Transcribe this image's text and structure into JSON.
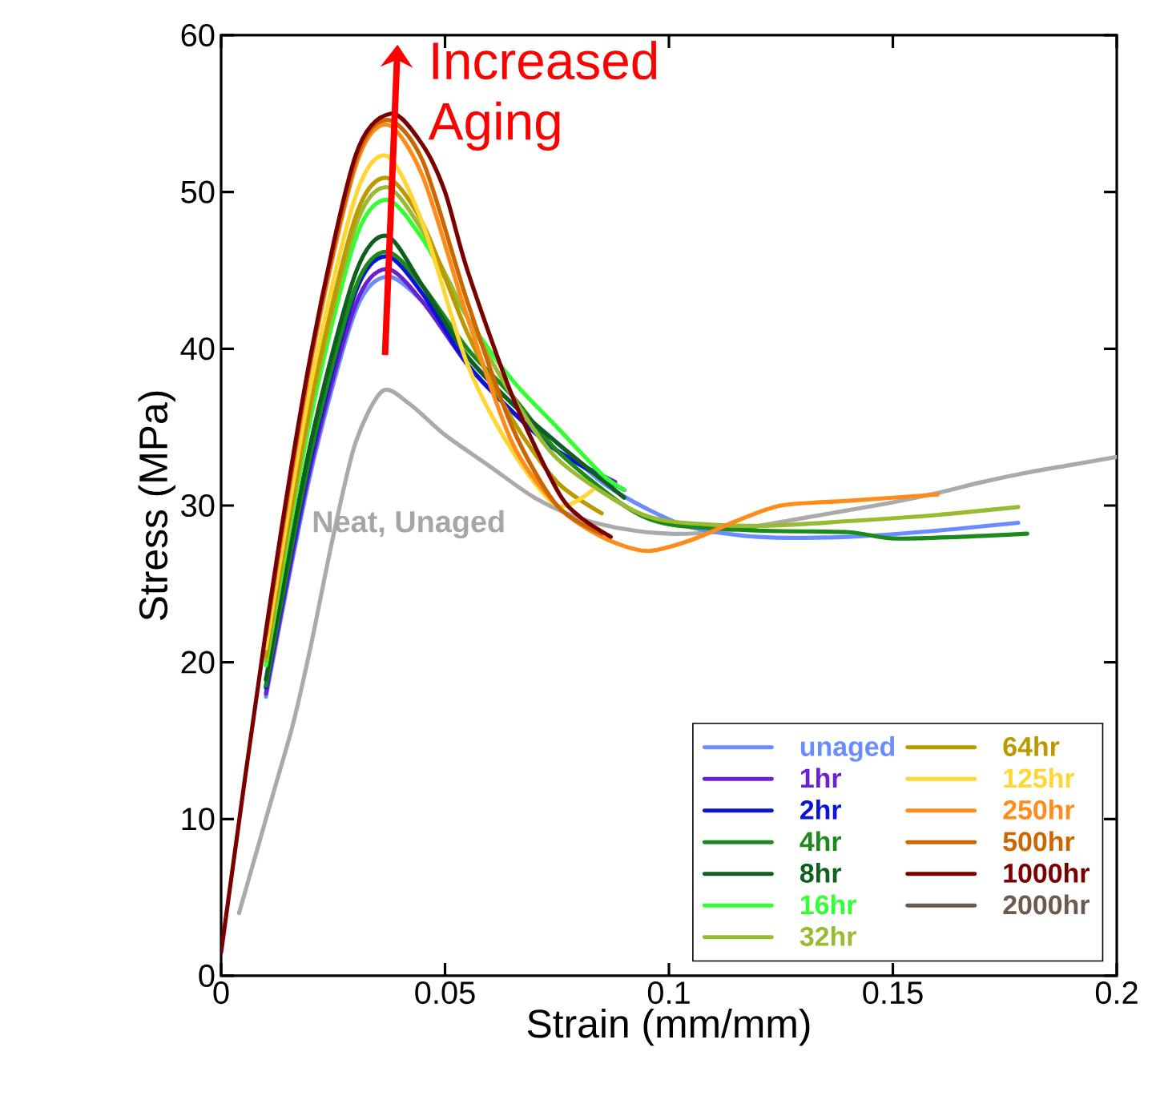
{
  "chart_data": {
    "type": "line",
    "xlabel": "Strain (mm/mm)",
    "ylabel": "Stress (MPa)",
    "xlim": [
      0,
      0.2
    ],
    "ylim": [
      0,
      60
    ],
    "xticks": [
      0,
      0.05,
      0.1,
      0.15,
      0.2
    ],
    "yticks": [
      0,
      10,
      20,
      30,
      40,
      50,
      60
    ],
    "legend": "bottom right",
    "annotations": [
      "Increased Aging",
      "Neat, Unaged"
    ],
    "series": [
      {
        "color": "#aaaaaa",
        "x": [
          0.004,
          0.008,
          0.012,
          0.016,
          0.02,
          0.025,
          0.03,
          0.036,
          0.042,
          0.05,
          0.06,
          0.07,
          0.08,
          0.09,
          0.1,
          0.11,
          0.12,
          0.13,
          0.14,
          0.15,
          0.16,
          0.17,
          0.18,
          0.19,
          0.2
        ],
        "values": [
          4,
          8,
          12,
          16,
          21,
          28,
          34,
          37.3,
          36.5,
          34.5,
          32.5,
          30.5,
          29.2,
          28.5,
          28.2,
          28.3,
          28.7,
          29.2,
          29.7,
          30.2,
          30.8,
          31.5,
          32.1,
          32.6,
          33.1
        ]
      },
      {
        "name": "unaged",
        "color": "#6b8cff",
        "x": [
          0.01,
          0.02,
          0.03,
          0.037,
          0.045,
          0.055,
          0.065,
          0.075,
          0.085,
          0.095,
          0.105,
          0.12,
          0.14,
          0.16,
          0.178
        ],
        "values": [
          17.8,
          32.1,
          42.4,
          44.6,
          43,
          39.5,
          36.5,
          34,
          31.5,
          29.8,
          28.6,
          28,
          28,
          28.4,
          28.9
        ]
      },
      {
        "name": "1hr",
        "color": "#6a1fd0",
        "x": [
          0.01,
          0.02,
          0.03,
          0.037,
          0.045,
          0.055,
          0.065,
          0.075,
          0.088
        ],
        "values": [
          18,
          32.5,
          42.8,
          45.1,
          43,
          39,
          36,
          33.5,
          31.5
        ]
      },
      {
        "name": "2hr",
        "color": "#0a14d6",
        "x": [
          0.01,
          0.02,
          0.03,
          0.037,
          0.045,
          0.055,
          0.065,
          0.075,
          0.09
        ],
        "values": [
          18.4,
          33,
          43.6,
          45.9,
          43.5,
          39,
          36,
          33.5,
          31
        ]
      },
      {
        "name": "4hr",
        "color": "#1a8a1a",
        "x": [
          0.01,
          0.02,
          0.03,
          0.037,
          0.045,
          0.055,
          0.065,
          0.075,
          0.09,
          0.1,
          0.12,
          0.14,
          0.15,
          0.165,
          0.18
        ],
        "values": [
          18.5,
          33.3,
          43.9,
          46.2,
          44,
          40,
          37,
          33.5,
          30,
          28.8,
          28.4,
          28.3,
          27.9,
          28,
          28.2
        ]
      },
      {
        "name": "8hr",
        "color": "#0f5f1f",
        "x": [
          0.01,
          0.02,
          0.03,
          0.037,
          0.045,
          0.055,
          0.065,
          0.075,
          0.09
        ],
        "values": [
          18.9,
          34,
          44.8,
          47.2,
          44,
          39.5,
          36.5,
          34,
          30.5
        ]
      },
      {
        "name": "16hr",
        "color": "#33ff33",
        "x": [
          0.01,
          0.02,
          0.03,
          0.037,
          0.045,
          0.055,
          0.065,
          0.075,
          0.085,
          0.09
        ],
        "values": [
          19.8,
          35.6,
          47,
          49.5,
          47,
          42,
          38,
          35,
          32,
          31
        ]
      },
      {
        "name": "32hr",
        "color": "#99bb33",
        "x": [
          0.01,
          0.02,
          0.03,
          0.037,
          0.045,
          0.055,
          0.065,
          0.075,
          0.09,
          0.1,
          0.12,
          0.14,
          0.16,
          0.178
        ],
        "values": [
          20.1,
          36.2,
          47.8,
          50.3,
          47.5,
          42,
          37,
          33,
          30,
          29,
          28.7,
          29,
          29.4,
          29.9
        ]
      },
      {
        "name": "64hr",
        "color": "#bb9900",
        "x": [
          0.01,
          0.02,
          0.03,
          0.037,
          0.045,
          0.055,
          0.065,
          0.075,
          0.085
        ],
        "values": [
          20.4,
          36.6,
          48.4,
          50.9,
          48,
          41,
          35.5,
          31.5,
          29.5
        ]
      },
      {
        "name": "125hr",
        "color": "#ffd633",
        "x": [
          0.01,
          0.02,
          0.03,
          0.037,
          0.045,
          0.055,
          0.065,
          0.075,
          0.083
        ],
        "values": [
          20.9,
          37.7,
          49.7,
          52.3,
          48,
          39,
          33.5,
          30,
          31
        ]
      },
      {
        "name": "250hr",
        "color": "#ff8c1a",
        "x": [
          0.01,
          0.02,
          0.03,
          0.037,
          0.045,
          0.055,
          0.065,
          0.075,
          0.085,
          0.095,
          0.105,
          0.115,
          0.125,
          0.14,
          0.16
        ],
        "values": [
          21.7,
          39.1,
          51.6,
          54.3,
          51,
          42,
          34,
          30,
          28,
          27.1,
          27.8,
          29,
          30,
          30.3,
          30.7
        ]
      },
      {
        "name": "500hr",
        "color": "#cc6600",
        "x": [
          0.01,
          0.02,
          0.03,
          0.037,
          0.045,
          0.055,
          0.065,
          0.075,
          0.085
        ],
        "values": [
          21.8,
          39.3,
          51.9,
          54.6,
          52,
          43,
          35,
          30,
          28.2
        ]
      },
      {
        "name": "1000hr",
        "color": "#7a0000",
        "x": [
          0,
          0.01,
          0.02,
          0.03,
          0.038,
          0.045,
          0.05,
          0.055,
          0.065,
          0.075,
          0.08,
          0.087
        ],
        "values": [
          1.5,
          22,
          39.6,
          52.3,
          55,
          53,
          50,
          45,
          37,
          31,
          29.3,
          28
        ]
      },
      {
        "name": "2000hr",
        "color": "#6b5a4d"
      }
    ]
  }
}
